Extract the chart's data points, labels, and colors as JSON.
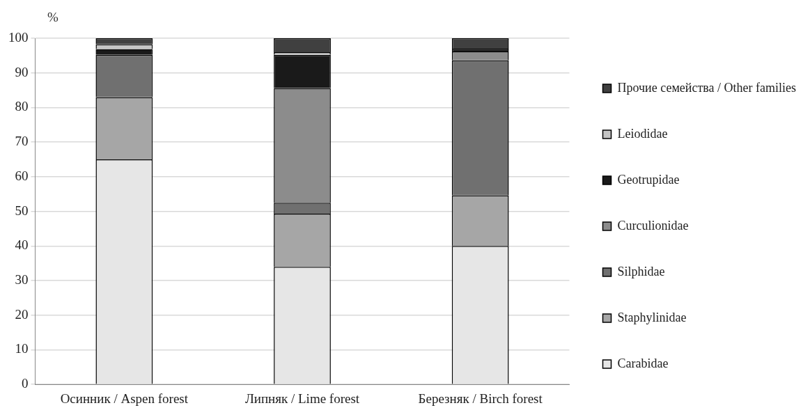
{
  "chart_data": {
    "type": "bar",
    "stacked": true,
    "ylabel": "%",
    "categories": [
      "Осинник / Aspen forest",
      "Липняк / Lime forest",
      "Березняк / Birch forest"
    ],
    "series": [
      {
        "name": "Carabidae",
        "color": "#e6e6e6",
        "values": [
          65,
          34,
          40
        ]
      },
      {
        "name": "Staphylinidae",
        "color": "#a6a6a6",
        "values": [
          18,
          15.3,
          14.6
        ]
      },
      {
        "name": "Silphidae",
        "color": "#707070",
        "values": [
          12.2,
          3.2,
          39
        ]
      },
      {
        "name": "Curculionidae",
        "color": "#8c8c8c",
        "values": [
          0,
          33.1,
          2.6
        ]
      },
      {
        "name": "Geotrupidae",
        "color": "#1a1a1a",
        "values": [
          1.7,
          9.6,
          0.8
        ]
      },
      {
        "name": "Leiodidae",
        "color": "#c4c4c4",
        "values": [
          1.4,
          0.8,
          0
        ]
      },
      {
        "name": "Прочие семейства / Other families",
        "color": "#404040",
        "values": [
          1.7,
          4.0,
          3.0
        ]
      }
    ],
    "ylim": [
      0,
      100
    ],
    "yticks": [
      0,
      10,
      20,
      30,
      40,
      50,
      60,
      70,
      80,
      90,
      100
    ],
    "grid": "y",
    "legend": "right"
  }
}
